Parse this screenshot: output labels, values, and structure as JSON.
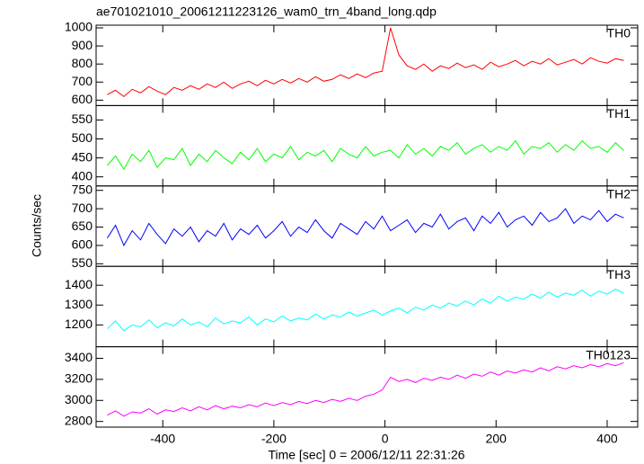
{
  "chart_data": {
    "type": "line",
    "title": "ae701021010_20061211223126_wam0_trn_4band_long.qdp",
    "x_label": "Time [sec] 0 = 2006/12/11 22:31:26",
    "y_label": "Counts/sec",
    "xlim": [
      -520,
      455
    ],
    "xticks": [
      -400,
      -200,
      0,
      200,
      400
    ],
    "x": [
      -500,
      -485,
      -470,
      -455,
      -440,
      -425,
      -410,
      -395,
      -380,
      -365,
      -350,
      -335,
      -320,
      -305,
      -290,
      -275,
      -260,
      -245,
      -230,
      -215,
      -200,
      -185,
      -170,
      -155,
      -140,
      -125,
      -110,
      -95,
      -80,
      -65,
      -50,
      -35,
      -20,
      -5,
      10,
      25,
      40,
      55,
      70,
      85,
      100,
      115,
      130,
      145,
      160,
      175,
      190,
      205,
      220,
      235,
      250,
      265,
      280,
      295,
      310,
      325,
      340,
      355,
      370,
      385,
      400,
      415,
      430
    ],
    "series": [
      {
        "name": "TH0",
        "color": "#ff0000",
        "ylim": [
          570,
          1015
        ],
        "yticks": [
          600,
          700,
          800,
          900,
          1000
        ],
        "values": [
          630,
          655,
          620,
          660,
          640,
          675,
          650,
          630,
          670,
          655,
          680,
          660,
          690,
          670,
          700,
          665,
          690,
          705,
          680,
          710,
          690,
          715,
          695,
          720,
          700,
          730,
          705,
          715,
          740,
          720,
          745,
          725,
          750,
          760,
          1000,
          850,
          790,
          770,
          800,
          760,
          790,
          775,
          805,
          780,
          795,
          770,
          810,
          785,
          800,
          820,
          790,
          815,
          800,
          830,
          795,
          810,
          825,
          800,
          835,
          815,
          805,
          830,
          820
        ]
      },
      {
        "name": "TH1",
        "color": "#00ff00",
        "ylim": [
          376,
          588
        ],
        "yticks": [
          400,
          450,
          500,
          550
        ],
        "values": [
          430,
          455,
          420,
          460,
          440,
          470,
          425,
          450,
          445,
          475,
          430,
          460,
          440,
          470,
          450,
          435,
          465,
          445,
          475,
          440,
          460,
          450,
          480,
          445,
          465,
          455,
          470,
          440,
          475,
          460,
          450,
          480,
          455,
          465,
          470,
          450,
          485,
          460,
          475,
          455,
          480,
          470,
          490,
          460,
          475,
          485,
          465,
          480,
          470,
          495,
          460,
          480,
          475,
          490,
          465,
          485,
          470,
          495,
          475,
          480,
          465,
          490,
          470
        ]
      },
      {
        "name": "TH2",
        "color": "#0000ff",
        "ylim": [
          543,
          762
        ],
        "yticks": [
          550,
          600,
          650,
          700,
          750
        ],
        "values": [
          620,
          655,
          600,
          640,
          615,
          660,
          630,
          605,
          645,
          625,
          650,
          610,
          640,
          625,
          660,
          615,
          645,
          630,
          655,
          620,
          640,
          665,
          625,
          650,
          635,
          670,
          640,
          620,
          660,
          645,
          630,
          665,
          645,
          680,
          640,
          655,
          670,
          635,
          660,
          650,
          685,
          645,
          665,
          675,
          640,
          680,
          660,
          690,
          650,
          670,
          680,
          655,
          690,
          665,
          675,
          700,
          660,
          680,
          670,
          695,
          665,
          685,
          675
        ]
      },
      {
        "name": "TH3",
        "color": "#00ffff",
        "ylim": [
          1090,
          1495
        ],
        "yticks": [
          1200,
          1300,
          1400
        ],
        "values": [
          1180,
          1220,
          1170,
          1200,
          1190,
          1225,
          1185,
          1210,
          1195,
          1230,
          1200,
          1215,
          1190,
          1235,
          1205,
          1220,
          1210,
          1240,
          1200,
          1230,
          1215,
          1245,
          1220,
          1235,
          1225,
          1255,
          1230,
          1250,
          1240,
          1265,
          1245,
          1260,
          1275,
          1250,
          1270,
          1285,
          1260,
          1290,
          1275,
          1300,
          1285,
          1310,
          1295,
          1320,
          1300,
          1330,
          1310,
          1345,
          1320,
          1340,
          1330,
          1355,
          1335,
          1365,
          1340,
          1360,
          1350,
          1375,
          1345,
          1370,
          1355,
          1380,
          1360
        ]
      },
      {
        "name": "TH0123",
        "color": "#ff00ff",
        "ylim": [
          2746,
          3510
        ],
        "yticks": [
          2800,
          3000,
          3200,
          3400
        ],
        "values": [
          2860,
          2900,
          2850,
          2890,
          2880,
          2920,
          2870,
          2910,
          2895,
          2930,
          2900,
          2940,
          2910,
          2950,
          2920,
          2945,
          2930,
          2960,
          2940,
          2975,
          2950,
          2980,
          2960,
          2990,
          2970,
          3000,
          2980,
          3010,
          2990,
          3020,
          3000,
          3040,
          3060,
          3100,
          3220,
          3180,
          3200,
          3170,
          3210,
          3190,
          3220,
          3200,
          3240,
          3210,
          3250,
          3230,
          3270,
          3240,
          3280,
          3260,
          3290,
          3270,
          3310,
          3280,
          3320,
          3300,
          3330,
          3310,
          3340,
          3320,
          3350,
          3330,
          3360
        ]
      }
    ]
  }
}
